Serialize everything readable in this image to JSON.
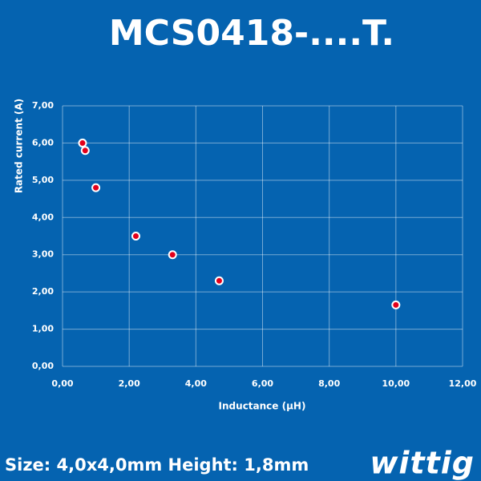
{
  "chart_data": {
    "type": "scatter",
    "title": "MCS0418-....T.",
    "x_label": "Inductance (µH)",
    "y_label": "Rated current (A)",
    "x": [
      0.6,
      0.68,
      1.0,
      2.2,
      3.3,
      4.7,
      10.0
    ],
    "values": [
      6.0,
      5.8,
      4.8,
      3.5,
      3.0,
      2.3,
      1.65
    ],
    "color": "#e3001b",
    "xlim": [
      0,
      12
    ],
    "ylim": [
      0,
      7
    ],
    "xticks": [
      {
        "value": 0,
        "label": "0,00"
      },
      {
        "value": 2,
        "label": "2,00"
      },
      {
        "value": 4,
        "label": "4,00"
      },
      {
        "value": 6,
        "label": "6,00"
      },
      {
        "value": 8,
        "label": "8,00"
      },
      {
        "value": 10,
        "label": "10,00"
      },
      {
        "value": 12,
        "label": "12,00"
      }
    ],
    "yticks": [
      {
        "value": 0,
        "label": "0,00"
      },
      {
        "value": 1,
        "label": "1,00"
      },
      {
        "value": 2,
        "label": "2,00"
      },
      {
        "value": 3,
        "label": "3,00"
      },
      {
        "value": 4,
        "label": "4,00"
      },
      {
        "value": 5,
        "label": "5,00"
      },
      {
        "value": 6,
        "label": "6,00"
      },
      {
        "value": 7,
        "label": "7,00"
      }
    ],
    "grid": true
  },
  "footer": {
    "text": "Size: 4,0x4,0mm Height: 1,8mm",
    "logo": "wittig"
  }
}
